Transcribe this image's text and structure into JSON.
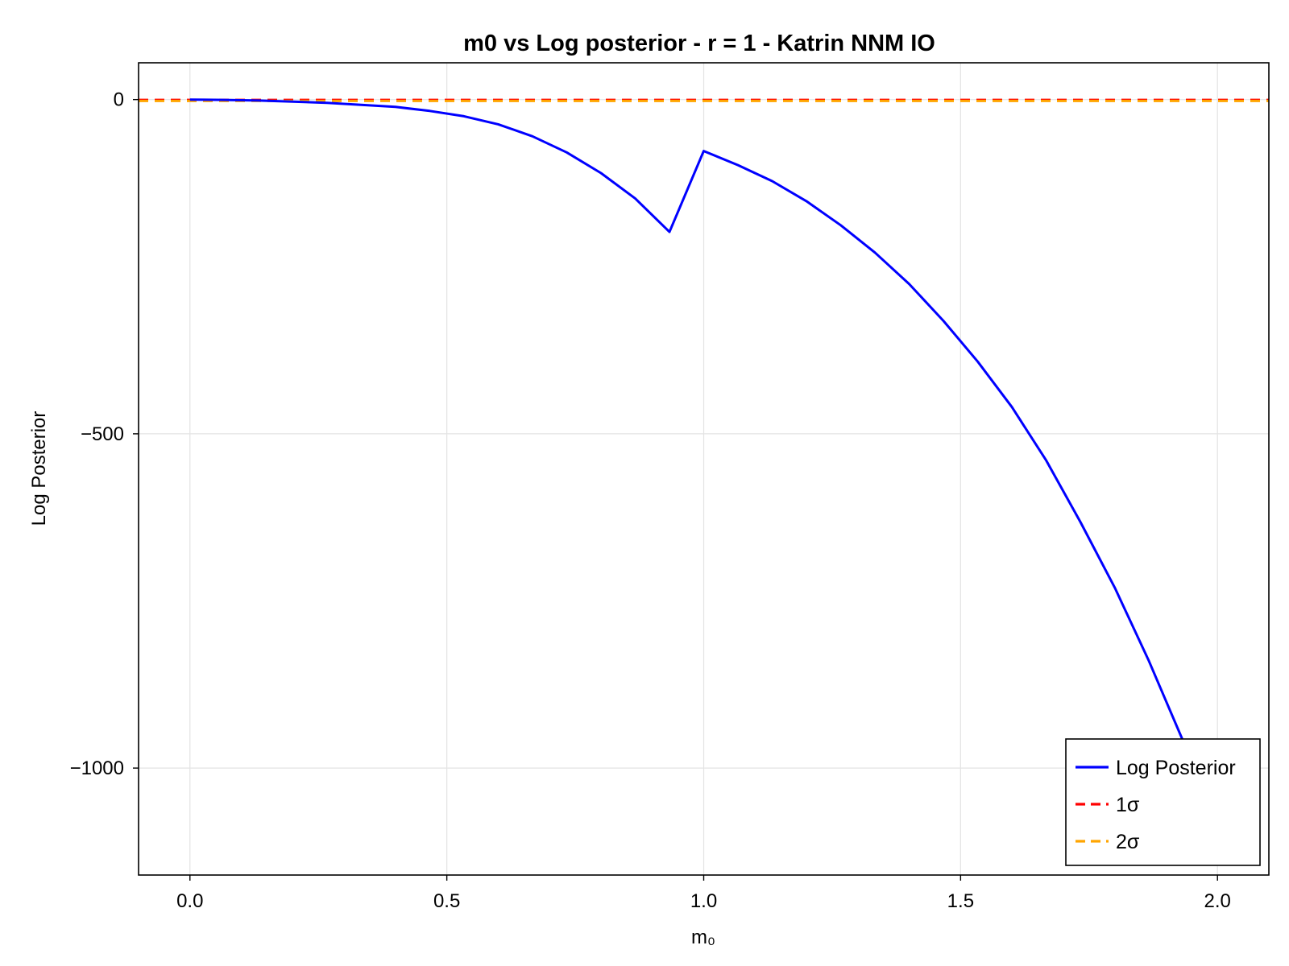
{
  "chart_data": {
    "type": "line",
    "title": "m0 vs Log posterior - r = 1 - Katrin NNM IO",
    "xlabel": "m₀",
    "ylabel": "Log Posterior",
    "xlim": [
      -0.1,
      2.1
    ],
    "ylim": [
      -1160,
      55
    ],
    "xticks": [
      0.0,
      0.5,
      1.0,
      1.5,
      2.0
    ],
    "xtick_labels": [
      "0.0",
      "0.5",
      "1.0",
      "1.5",
      "2.0"
    ],
    "yticks": [
      0,
      -500,
      -1000
    ],
    "ytick_labels": [
      "0",
      "−500",
      "−1000"
    ],
    "grid": true,
    "legend_position": "bottom-right",
    "series": [
      {
        "name": "Log Posterior",
        "style": "solid",
        "color": "#0000ff",
        "x": [
          0.0,
          0.0667,
          0.1333,
          0.2,
          0.2667,
          0.3333,
          0.4,
          0.4667,
          0.5333,
          0.6,
          0.6667,
          0.7333,
          0.8,
          0.8667,
          0.9333,
          1.0,
          1.0667,
          1.1333,
          1.2,
          1.2667,
          1.3333,
          1.4,
          1.4667,
          1.5333,
          1.6,
          1.6667,
          1.7333,
          1.8,
          1.8667,
          1.9333
        ],
        "y": [
          0,
          -0.5,
          -1.5,
          -3,
          -5,
          -8,
          -11,
          -17,
          -25,
          -37,
          -55,
          -79,
          -110,
          -148,
          -198,
          -77,
          -98,
          -122,
          -152,
          -188,
          -229,
          -276,
          -331,
          -392,
          -460,
          -540,
          -632,
          -730,
          -840,
          -960
        ]
      },
      {
        "name": "1σ",
        "style": "dashed",
        "color": "#ff0000",
        "hline": -0.5
      },
      {
        "name": "2σ",
        "style": "dashed",
        "color": "#ffa500",
        "hline": -2
      }
    ]
  }
}
